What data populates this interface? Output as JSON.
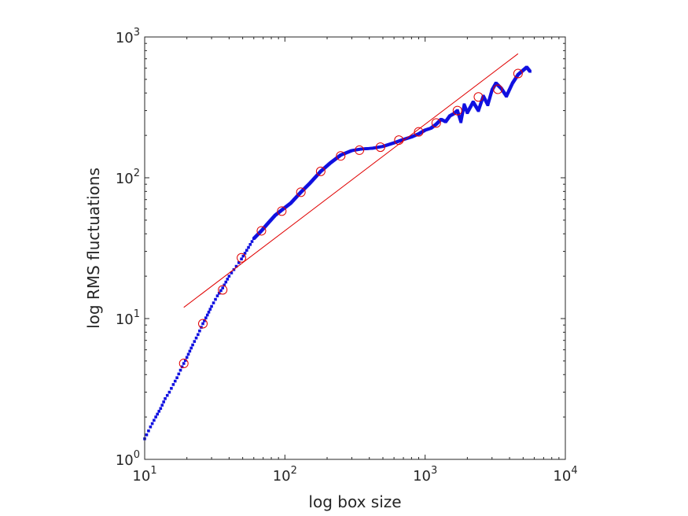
{
  "chart_data": {
    "type": "scatter",
    "xlabel": "log box size",
    "ylabel": "log RMS fluctuations",
    "xscale": "log",
    "yscale": "log",
    "xlim": [
      10,
      10000
    ],
    "ylim": [
      1,
      1000
    ],
    "x_ticks": [
      {
        "base": "10",
        "exp": "1",
        "value": 10
      },
      {
        "base": "10",
        "exp": "2",
        "value": 100
      },
      {
        "base": "10",
        "exp": "3",
        "value": 1000
      },
      {
        "base": "10",
        "exp": "4",
        "value": 10000
      }
    ],
    "y_ticks": [
      {
        "base": "10",
        "exp": "0",
        "value": 1
      },
      {
        "base": "10",
        "exp": "1",
        "value": 10
      },
      {
        "base": "10",
        "exp": "2",
        "value": 100
      },
      {
        "base": "10",
        "exp": "3",
        "value": 1000
      }
    ],
    "grid": false,
    "box": true,
    "colors": {
      "data": "#1010e0",
      "fit": "#e00000",
      "markers": "#e00000",
      "axis": "#262626"
    },
    "fluctuation_curve": {
      "x": [
        10,
        11,
        12,
        13,
        14,
        15,
        16,
        17,
        18,
        19,
        20,
        22,
        24,
        26,
        28,
        30,
        33,
        36,
        40,
        45,
        49,
        55,
        60,
        68,
        75,
        85,
        95,
        110,
        130,
        150,
        180,
        210,
        250,
        300,
        350,
        420,
        500,
        600,
        700,
        800,
        900,
        1000,
        1100,
        1200,
        1300,
        1400,
        1500,
        1600,
        1700,
        1800,
        1900,
        2000,
        2200,
        2400,
        2600,
        2800,
        3000,
        3200,
        3500,
        3800,
        4200,
        4600,
        5000,
        5300,
        5600
      ],
      "y": [
        1.4,
        1.7,
        2.0,
        2.3,
        2.7,
        3.0,
        3.4,
        3.8,
        4.3,
        4.8,
        5.3,
        6.5,
        7.7,
        9.2,
        10.6,
        12.2,
        14.5,
        16.5,
        20.0,
        23.5,
        26.5,
        32.0,
        37.0,
        42.0,
        47.0,
        54.0,
        59.0,
        66.0,
        79.0,
        91.0,
        111.0,
        127.0,
        145.0,
        156.0,
        160.0,
        162.0,
        167.0,
        177.0,
        187.0,
        195.0,
        205.0,
        218.0,
        225.0,
        240.0,
        260.0,
        250.0,
        275.0,
        285.0,
        300.0,
        250.0,
        330.0,
        290.0,
        345.0,
        300.0,
        380.0,
        330.0,
        420.0,
        470.0,
        430.0,
        380.0,
        470.0,
        540.0,
        580.0,
        610.0,
        570.0
      ]
    },
    "sample_points": {
      "x": [
        19,
        26,
        36,
        49,
        68,
        95,
        130,
        180,
        250,
        340,
        480,
        650,
        900,
        1200,
        1700,
        2400,
        3300,
        4600
      ],
      "y": [
        4.8,
        9.2,
        16.0,
        27.0,
        42.0,
        58.0,
        79.0,
        111.0,
        143.0,
        157.0,
        165.0,
        185.0,
        212.0,
        245.0,
        300.0,
        375.0,
        425.0,
        550.0
      ]
    },
    "fit_line": {
      "x": [
        19,
        4600
      ],
      "y": [
        12,
        760
      ]
    }
  }
}
